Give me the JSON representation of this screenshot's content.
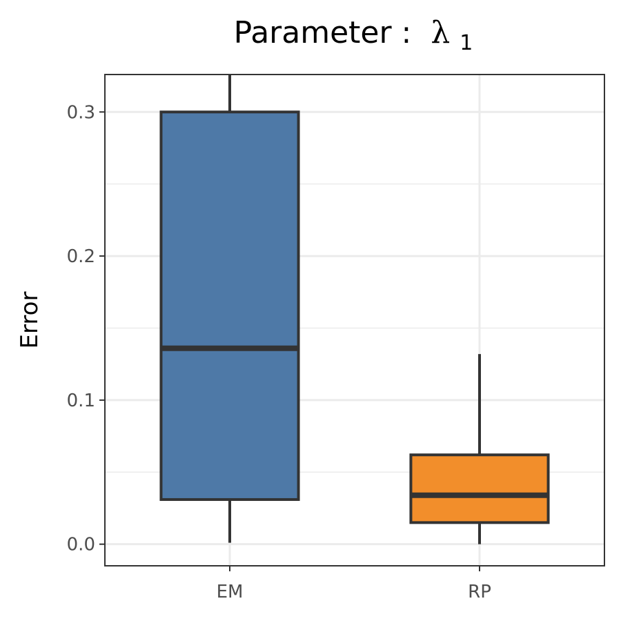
{
  "chart_data": {
    "type": "box",
    "title_main": "Parameter :",
    "title_symbol": "λ",
    "title_subscript": "1",
    "xlabel": "",
    "ylabel": "Error",
    "ylim": [
      -0.015,
      0.326
    ],
    "y_ticks": [
      0.0,
      0.1,
      0.2,
      0.3
    ],
    "y_tick_labels": [
      "0.0",
      "0.1",
      "0.2",
      "0.3"
    ],
    "y_minor_ticks": [
      0.05,
      0.15,
      0.25
    ],
    "grid": true,
    "categories": [
      "EM",
      "RP"
    ],
    "boxes": [
      {
        "category": "EM",
        "whisker_low": 0.001,
        "q1": 0.031,
        "median": 0.136,
        "q3": 0.3,
        "whisker_high": 0.326,
        "color": "#4e79a7"
      },
      {
        "category": "RP",
        "whisker_low": 0.0,
        "q1": 0.015,
        "median": 0.034,
        "q3": 0.062,
        "whisker_high": 0.132,
        "color": "#f28e2b"
      }
    ]
  }
}
